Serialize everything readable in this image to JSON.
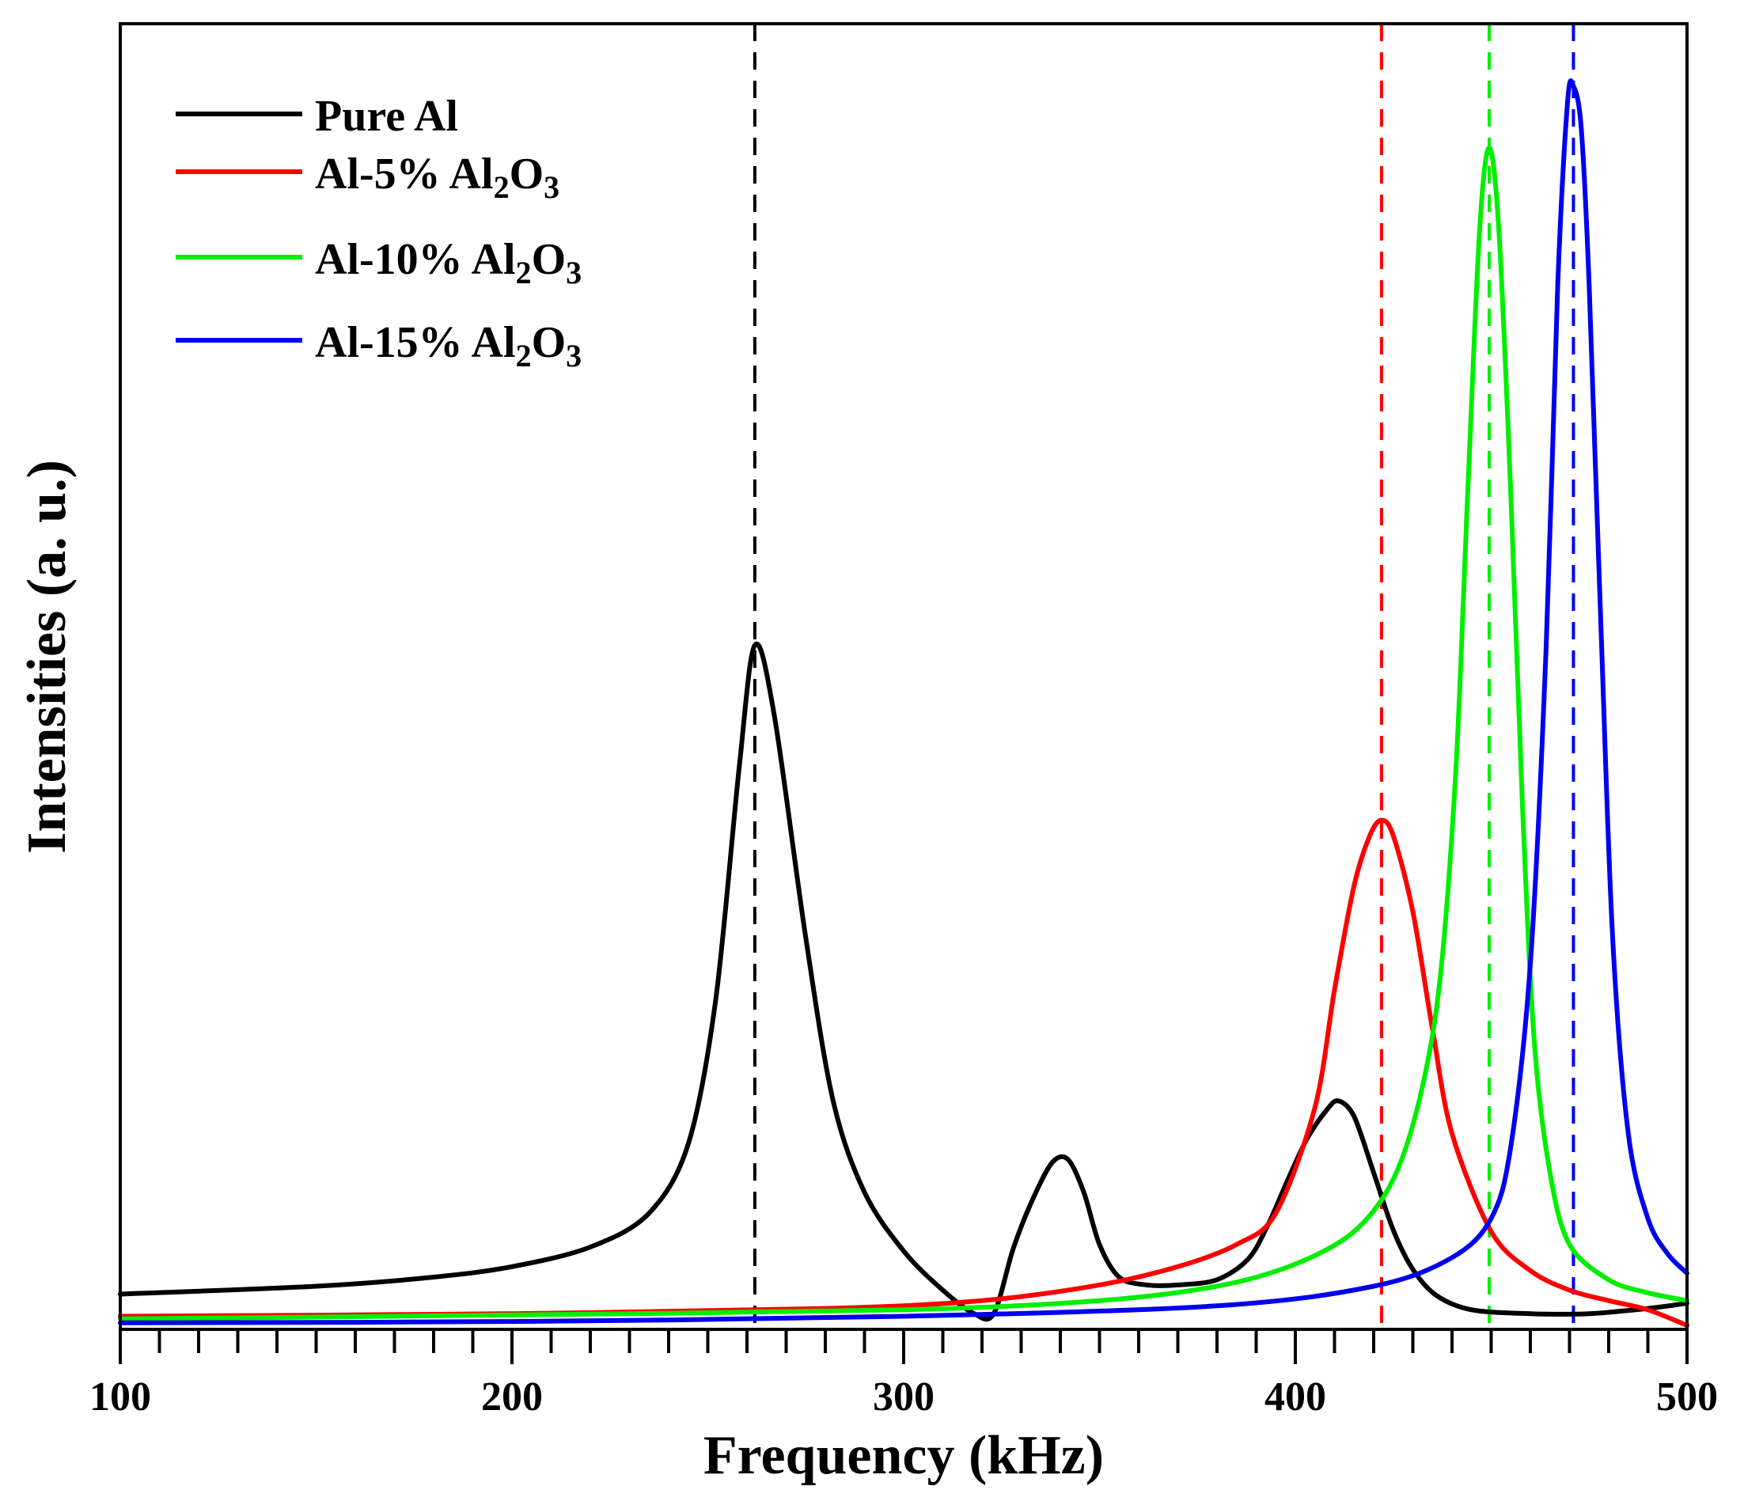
{
  "chart_data": {
    "type": "line",
    "title": "",
    "xlabel": "Frequency (kHz)",
    "ylabel": "Intensities (a. u.)",
    "xlim": [
      100,
      500
    ],
    "ylim": [
      0,
      1.0
    ],
    "x_ticks": [
      100,
      200,
      300,
      400,
      500
    ],
    "x_minor_step": 10,
    "y_ticks_shown": false,
    "grid": false,
    "legend_position": "top-left",
    "series": [
      {
        "name": "Pure Al",
        "label_main": "Pure Al",
        "label_sub1": "",
        "label_mid": "",
        "label_sub2": "",
        "color": "#000000",
        "x": [
          100,
          150,
          180,
          200,
          220,
          235,
          245,
          252,
          258,
          262,
          267,
          275,
          282,
          290,
          300,
          310,
          318,
          323,
          328,
          333,
          338,
          342,
          346,
          350,
          355,
          362,
          370,
          380,
          388,
          393,
          398,
          403,
          408,
          411,
          415,
          420,
          425,
          430,
          436,
          445,
          460,
          475,
          490,
          500
        ],
        "values": [
          0.027,
          0.033,
          0.04,
          0.048,
          0.063,
          0.089,
          0.142,
          0.252,
          0.43,
          0.524,
          0.47,
          0.3,
          0.175,
          0.105,
          0.06,
          0.03,
          0.012,
          0.012,
          0.062,
          0.1,
          0.128,
          0.13,
          0.105,
          0.065,
          0.04,
          0.034,
          0.034,
          0.038,
          0.054,
          0.08,
          0.114,
          0.146,
          0.168,
          0.175,
          0.163,
          0.12,
          0.076,
          0.046,
          0.026,
          0.015,
          0.012,
          0.012,
          0.016,
          0.02
        ]
      },
      {
        "name": "Al-5% Al2O3",
        "label_main": "Al-5% Al",
        "label_sub1": "2",
        "label_mid": "O",
        "label_sub2": "3",
        "color": "#ff0000",
        "x": [
          100,
          200,
          280,
          320,
          350,
          370,
          385,
          395,
          405,
          410,
          415,
          419,
          422,
          425,
          430,
          435,
          440,
          450,
          460,
          470,
          480,
          490,
          500
        ],
        "values": [
          0.01,
          0.012,
          0.016,
          0.022,
          0.034,
          0.048,
          0.065,
          0.089,
          0.17,
          0.26,
          0.34,
          0.378,
          0.39,
          0.378,
          0.32,
          0.23,
          0.15,
          0.075,
          0.045,
          0.03,
          0.022,
          0.015,
          0.003
        ]
      },
      {
        "name": "Al-10% Al2O3",
        "label_main": "Al-10% Al",
        "label_sub1": "2",
        "label_mid": "O",
        "label_sub2": "3",
        "color": "#00ee00",
        "x": [
          100,
          200,
          300,
          350,
          380,
          400,
          415,
          425,
          432,
          437,
          441,
          444,
          447,
          449.5,
          452,
          455,
          458,
          461,
          465,
          470,
          480,
          490,
          500
        ],
        "values": [
          0.008,
          0.011,
          0.015,
          0.022,
          0.033,
          0.05,
          0.075,
          0.115,
          0.18,
          0.27,
          0.43,
          0.64,
          0.84,
          0.905,
          0.84,
          0.64,
          0.4,
          0.22,
          0.12,
          0.065,
          0.038,
          0.028,
          0.022
        ]
      },
      {
        "name": "Al-15% Al2O3",
        "label_main": "Al-15% Al",
        "label_sub1": "2",
        "label_mid": "O",
        "label_sub2": "3",
        "color": "#0000ee",
        "x": [
          100,
          200,
          300,
          380,
          420,
          440,
          450,
          455,
          460,
          464,
          467,
          469.5,
          471,
          473,
          475,
          478,
          481,
          485,
          490,
          495,
          500
        ],
        "values": [
          0.005,
          0.006,
          0.01,
          0.018,
          0.033,
          0.055,
          0.085,
          0.14,
          0.28,
          0.52,
          0.8,
          0.94,
          0.952,
          0.92,
          0.8,
          0.54,
          0.3,
          0.15,
          0.085,
          0.058,
          0.043
        ]
      }
    ],
    "reference_lines": [
      {
        "x": 262,
        "color": "#000000"
      },
      {
        "x": 422,
        "color": "#ff0000"
      },
      {
        "x": 449.5,
        "color": "#00ee00"
      },
      {
        "x": 471,
        "color": "#0000ee"
      }
    ]
  }
}
